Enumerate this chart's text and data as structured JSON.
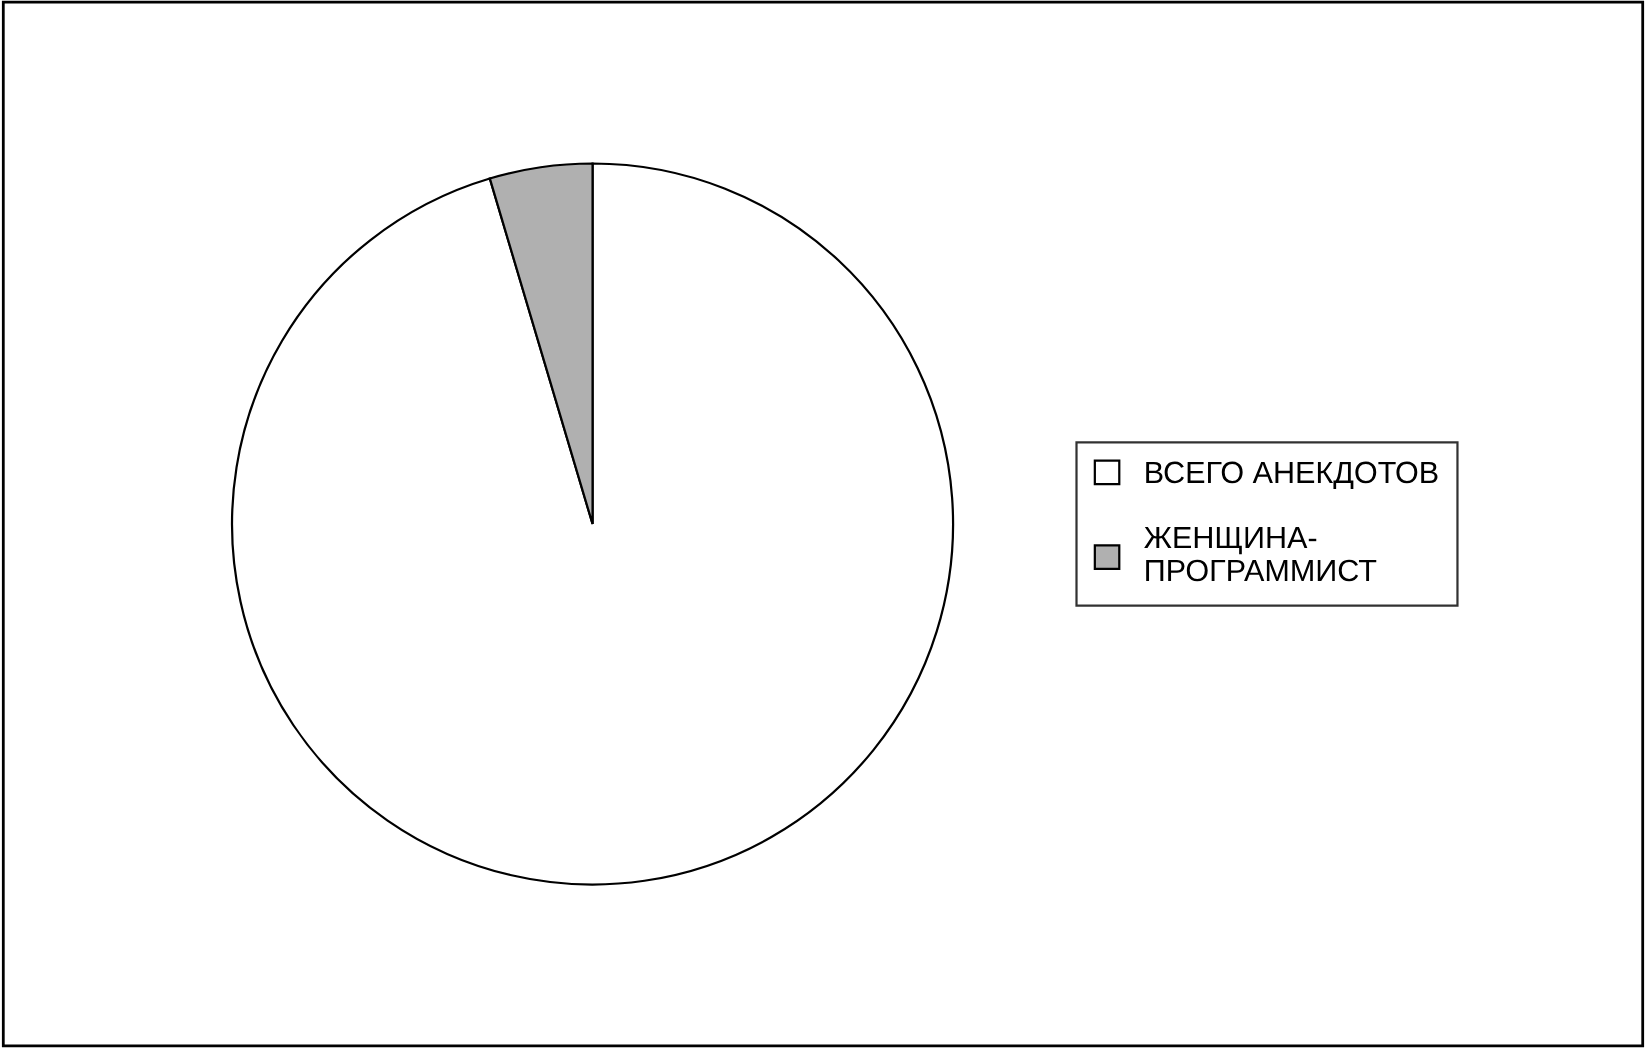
{
  "chart_data": {
    "type": "pie",
    "categories": [
      "ВСЕГО АНЕКДОТОВ",
      "ЖЕНЩИНА-\nПРОГРАММИСТ"
    ],
    "values": [
      95.4,
      4.6
    ],
    "colors": [
      "#ffffff",
      "#b0b0b0"
    ],
    "legend": "right"
  }
}
